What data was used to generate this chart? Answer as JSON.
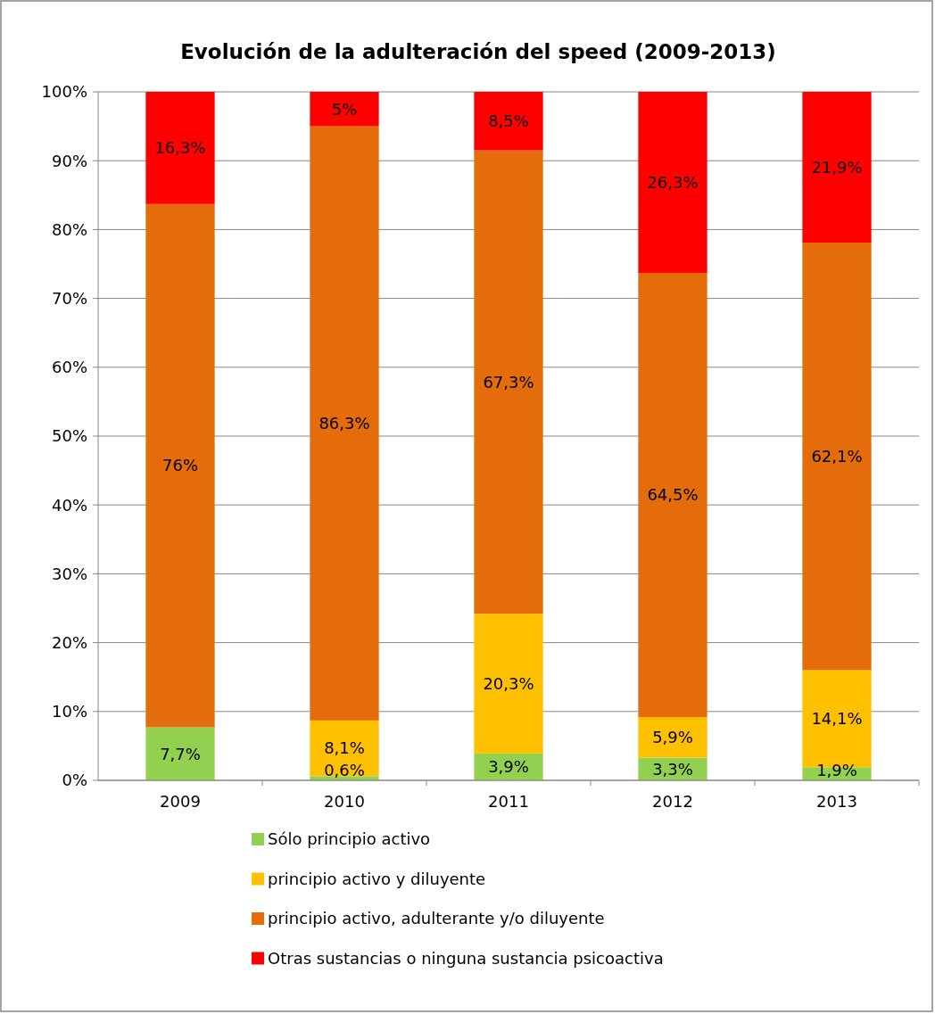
{
  "chart_data": {
    "type": "bar",
    "title": "Evolución de la adulteración del speed (2009-2013)",
    "categories": [
      "2009",
      "2010",
      "2011",
      "2012",
      "2013"
    ],
    "stacked": true,
    "series": [
      {
        "name": "Sólo principio activo",
        "color": "#92d050",
        "values": [
          7.7,
          0.6,
          3.9,
          3.3,
          1.9
        ],
        "value_labels": [
          "7,7%",
          "0,6%",
          "3,9%",
          "3,3%",
          "1,9%"
        ]
      },
      {
        "name": "principio activo y diluyente",
        "color": "#ffc000",
        "values": [
          null,
          8.1,
          20.3,
          5.9,
          14.1
        ],
        "value_labels": [
          null,
          "8,1%",
          "20,3%",
          "5,9%",
          "14,1%"
        ]
      },
      {
        "name": "principio activo, adulterante y/o diluyente",
        "color": "#e46c0a",
        "values": [
          76,
          86.3,
          67.3,
          64.5,
          62.1
        ],
        "value_labels": [
          "76%",
          "86,3%",
          "67,3%",
          "64,5%",
          "62,1%"
        ]
      },
      {
        "name": "Otras sustancias o ninguna sustancia psicoactiva",
        "color": "#ff0000",
        "values": [
          16.3,
          5,
          8.5,
          26.3,
          21.9
        ],
        "value_labels": [
          "16,3%",
          "5%",
          "8,5%",
          "26,3%",
          "21,9%"
        ]
      }
    ],
    "ylim": [
      0,
      100
    ],
    "yticks": [
      {
        "value": 0,
        "label": "0%"
      },
      {
        "value": 10,
        "label": "10%"
      },
      {
        "value": 20,
        "label": "20%"
      },
      {
        "value": 30,
        "label": "30%"
      },
      {
        "value": 40,
        "label": "40%"
      },
      {
        "value": 50,
        "label": "50%"
      },
      {
        "value": 60,
        "label": "60%"
      },
      {
        "value": 70,
        "label": "70%"
      },
      {
        "value": 80,
        "label": "80%"
      },
      {
        "value": 90,
        "label": "90%"
      },
      {
        "value": 100,
        "label": "100%"
      }
    ],
    "grid": "y",
    "legend": "bottom"
  }
}
